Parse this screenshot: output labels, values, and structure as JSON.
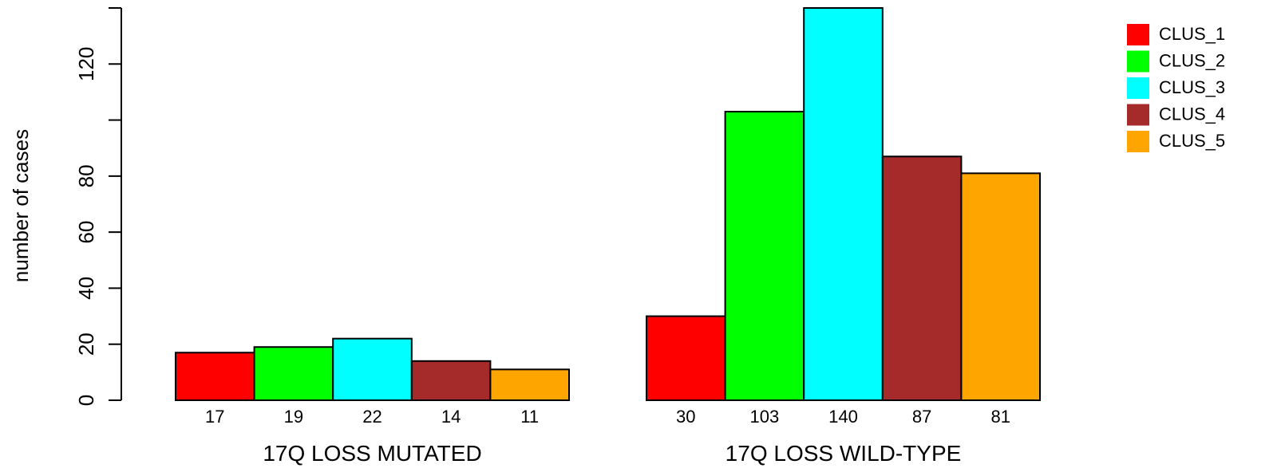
{
  "chart_data": {
    "type": "bar",
    "ylabel": "number of cases",
    "ylim": [
      0,
      140
    ],
    "yticks": [
      0,
      20,
      40,
      60,
      80,
      100,
      120,
      140
    ],
    "ytick_labels": [
      "0",
      "20",
      "40",
      "60",
      "80",
      "",
      "120",
      ""
    ],
    "groups": [
      "17Q LOSS MUTATED",
      "17Q LOSS WILD-TYPE"
    ],
    "series": [
      {
        "name": "CLUS_1",
        "color": "#ff0000",
        "values": [
          17,
          30
        ]
      },
      {
        "name": "CLUS_2",
        "color": "#00ff00",
        "values": [
          19,
          103
        ]
      },
      {
        "name": "CLUS_3",
        "color": "#00ffff",
        "values": [
          22,
          140
        ]
      },
      {
        "name": "CLUS_4",
        "color": "#a52a2a",
        "values": [
          14,
          87
        ]
      },
      {
        "name": "CLUS_5",
        "color": "#ffa500",
        "values": [
          11,
          81
        ]
      }
    ],
    "legend_position": "top-right",
    "grid": false
  }
}
